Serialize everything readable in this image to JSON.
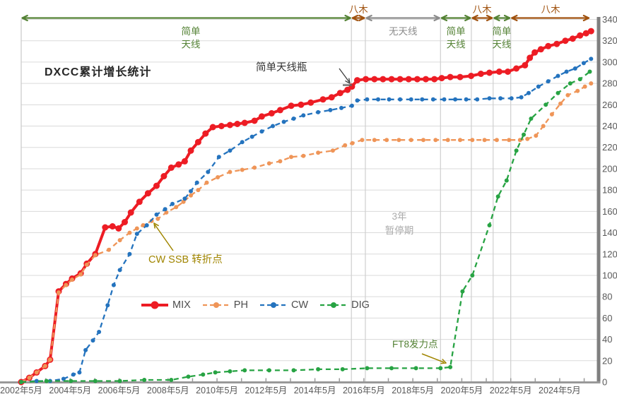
{
  "title": "DXCC累计增长统计",
  "colors": {
    "mix": "#ED1C24",
    "ph": "#EF9558",
    "cw": "#2473BE",
    "dig": "#27A343",
    "green_note": "#548235",
    "brown_note": "#A0520F",
    "gray_note": "#8C8C8C",
    "olive_note": "#A08500",
    "grid": "#DADADA",
    "boundary": "#CFCFCF",
    "axis": "#999999",
    "axis_right": "#7F7F7F",
    "tick_text": "#595959"
  },
  "legend": [
    {
      "label": "MIX",
      "color": "#ED1C24",
      "dash": "solid"
    },
    {
      "label": "PH",
      "color": "#EF9558",
      "dash": "dashed"
    },
    {
      "label": "CW",
      "color": "#2473BE",
      "dash": "dashed"
    },
    {
      "label": "DIG",
      "color": "#27A343",
      "dash": "dashed"
    }
  ],
  "annotations": {
    "bottleneck": {
      "text": "简单天线瓶",
      "color": "#333333"
    },
    "cwssb": {
      "text": "CW SSB 转折点",
      "color": "#A08500"
    },
    "pause": {
      "line1": "3年",
      "line2": "暂停期",
      "color": "#ABABAB"
    },
    "ft8": {
      "text": "FT8发力点",
      "color": "#548235"
    }
  },
  "periods": [
    {
      "label_lines": [
        "简单",
        "天线"
      ],
      "from": 2002.37,
      "to": 2015.86,
      "color_key": "green_note",
      "label_side": "below",
      "label_at": 2009.3
    },
    {
      "label_lines": [
        "八木"
      ],
      "from": 2015.86,
      "to": 2016.43,
      "color_key": "brown_note",
      "label_side": "above",
      "label_at": 2016.15
    },
    {
      "label_lines": [
        "无天线"
      ],
      "from": 2016.43,
      "to": 2019.5,
      "color_key": "gray_note",
      "label_side": "below",
      "label_at": 2017.97
    },
    {
      "label_lines": [
        "简单",
        "天线"
      ],
      "from": 2019.5,
      "to": 2020.76,
      "color_key": "green_note",
      "label_side": "below",
      "label_at": 2020.13
    },
    {
      "label_lines": [
        "八木"
      ],
      "from": 2020.76,
      "to": 2021.65,
      "color_key": "brown_note",
      "label_side": "above",
      "label_at": 2021.2
    },
    {
      "label_lines": [
        "简单",
        "天线"
      ],
      "from": 2021.65,
      "to": 2022.37,
      "color_key": "green_note",
      "label_side": "below",
      "label_at": 2022.0
    },
    {
      "label_lines": [
        "八木"
      ],
      "from": 2022.37,
      "to": 2025.6,
      "color_key": "brown_note",
      "label_side": "above",
      "label_at": 2024.0
    }
  ],
  "chart_data": {
    "type": "line",
    "title": "DXCC累计增长统计",
    "xlabel": "",
    "ylabel": "",
    "grid": true,
    "legend_position": "inside-left-bottom",
    "x_axis": {
      "range": [
        2002.37,
        2025.7
      ],
      "ticks": [
        {
          "year": 2002.37,
          "label": "2002年5月"
        },
        {
          "year": 2004.37,
          "label": "2004年5月"
        },
        {
          "year": 2006.37,
          "label": "2006年5月"
        },
        {
          "year": 2008.37,
          "label": "2008年5月"
        },
        {
          "year": 2010.37,
          "label": "2010年5月"
        },
        {
          "year": 2012.37,
          "label": "2012年5月"
        },
        {
          "year": 2014.37,
          "label": "2014年5月"
        },
        {
          "year": 2016.37,
          "label": "2016年5月"
        },
        {
          "year": 2018.37,
          "label": "2018年5月"
        },
        {
          "year": 2020.37,
          "label": "2020年5月"
        },
        {
          "year": 2022.37,
          "label": "2022年5月"
        },
        {
          "year": 2024.37,
          "label": "2024年5月"
        }
      ]
    },
    "y_axis": {
      "min": 0,
      "max": 340,
      "step": 20,
      "side": "right"
    },
    "period_boundaries": [
      2015.86,
      2016.43,
      2019.5,
      2020.76,
      2021.65,
      2022.37
    ],
    "series": [
      {
        "name": "MIX",
        "color": "#ED1C24",
        "dash": "solid",
        "points": [
          [
            2002.37,
            0
          ],
          [
            2002.7,
            4
          ],
          [
            2003.0,
            9
          ],
          [
            2003.35,
            15
          ],
          [
            2003.55,
            21
          ],
          [
            2003.9,
            85
          ],
          [
            2004.2,
            92
          ],
          [
            2004.45,
            97
          ],
          [
            2004.8,
            102
          ],
          [
            2005.05,
            111
          ],
          [
            2005.4,
            120
          ],
          [
            2005.8,
            145
          ],
          [
            2006.1,
            146
          ],
          [
            2006.35,
            144
          ],
          [
            2006.6,
            150
          ],
          [
            2006.85,
            159
          ],
          [
            2007.2,
            169
          ],
          [
            2007.55,
            177
          ],
          [
            2007.9,
            184
          ],
          [
            2008.2,
            193
          ],
          [
            2008.5,
            201
          ],
          [
            2008.8,
            204
          ],
          [
            2009.05,
            207
          ],
          [
            2009.3,
            217
          ],
          [
            2009.6,
            225
          ],
          [
            2009.9,
            233
          ],
          [
            2010.2,
            239
          ],
          [
            2010.55,
            240
          ],
          [
            2010.9,
            241
          ],
          [
            2011.2,
            242
          ],
          [
            2011.5,
            243
          ],
          [
            2011.9,
            245
          ],
          [
            2012.2,
            249
          ],
          [
            2012.6,
            252
          ],
          [
            2012.95,
            255
          ],
          [
            2013.4,
            259
          ],
          [
            2013.8,
            260
          ],
          [
            2014.2,
            262
          ],
          [
            2014.7,
            265
          ],
          [
            2015.05,
            267
          ],
          [
            2015.4,
            271
          ],
          [
            2015.7,
            274
          ],
          [
            2015.88,
            277
          ],
          [
            2016.1,
            283
          ],
          [
            2016.45,
            284
          ],
          [
            2016.8,
            284
          ],
          [
            2017.15,
            284
          ],
          [
            2017.5,
            284
          ],
          [
            2017.85,
            284
          ],
          [
            2018.2,
            284
          ],
          [
            2018.55,
            284
          ],
          [
            2018.9,
            284
          ],
          [
            2019.25,
            284
          ],
          [
            2019.55,
            285
          ],
          [
            2019.9,
            286
          ],
          [
            2020.3,
            286
          ],
          [
            2020.75,
            287
          ],
          [
            2021.15,
            289
          ],
          [
            2021.5,
            290
          ],
          [
            2021.9,
            291
          ],
          [
            2022.25,
            291
          ],
          [
            2022.6,
            294
          ],
          [
            2022.95,
            297
          ],
          [
            2023.15,
            304
          ],
          [
            2023.35,
            309
          ],
          [
            2023.6,
            312
          ],
          [
            2023.9,
            315
          ],
          [
            2024.25,
            317
          ],
          [
            2024.6,
            320
          ],
          [
            2024.9,
            322
          ],
          [
            2025.2,
            325
          ],
          [
            2025.45,
            327
          ],
          [
            2025.65,
            329
          ]
        ]
      },
      {
        "name": "PH",
        "color": "#EF9558",
        "dash": "dashed",
        "points": [
          [
            2002.37,
            0
          ],
          [
            2002.7,
            4
          ],
          [
            2003.0,
            9
          ],
          [
            2003.35,
            15
          ],
          [
            2003.55,
            21
          ],
          [
            2003.9,
            84
          ],
          [
            2004.2,
            91
          ],
          [
            2004.45,
            96
          ],
          [
            2004.8,
            101
          ],
          [
            2005.05,
            110
          ],
          [
            2005.4,
            119
          ],
          [
            2005.95,
            124
          ],
          [
            2006.4,
            133
          ],
          [
            2006.8,
            140
          ],
          [
            2007.1,
            144
          ],
          [
            2007.35,
            147
          ],
          [
            2007.7,
            151
          ],
          [
            2007.95,
            153
          ],
          [
            2008.3,
            159
          ],
          [
            2008.7,
            164
          ],
          [
            2009.0,
            169
          ],
          [
            2009.3,
            175
          ],
          [
            2009.6,
            180
          ],
          [
            2009.95,
            187
          ],
          [
            2010.4,
            192
          ],
          [
            2010.9,
            197
          ],
          [
            2011.4,
            199
          ],
          [
            2011.9,
            201
          ],
          [
            2012.5,
            205
          ],
          [
            2012.95,
            207
          ],
          [
            2013.4,
            211
          ],
          [
            2013.9,
            212
          ],
          [
            2014.5,
            215
          ],
          [
            2015.1,
            217
          ],
          [
            2015.6,
            222
          ],
          [
            2015.9,
            224
          ],
          [
            2016.3,
            227
          ],
          [
            2016.8,
            227
          ],
          [
            2017.3,
            227
          ],
          [
            2017.8,
            227
          ],
          [
            2018.3,
            227
          ],
          [
            2018.8,
            227
          ],
          [
            2019.3,
            227
          ],
          [
            2019.8,
            227
          ],
          [
            2020.3,
            227
          ],
          [
            2020.8,
            227
          ],
          [
            2021.3,
            227
          ],
          [
            2021.8,
            227
          ],
          [
            2022.3,
            227
          ],
          [
            2022.75,
            227
          ],
          [
            2023.05,
            228
          ],
          [
            2023.4,
            231
          ],
          [
            2023.7,
            240
          ],
          [
            2024.05,
            251
          ],
          [
            2024.4,
            261
          ],
          [
            2024.7,
            269
          ],
          [
            2025.1,
            273
          ],
          [
            2025.4,
            277
          ],
          [
            2025.65,
            280
          ]
        ]
      },
      {
        "name": "CW",
        "color": "#2473BE",
        "dash": "dashed",
        "points": [
          [
            2002.37,
            0
          ],
          [
            2003.0,
            1
          ],
          [
            2003.55,
            1
          ],
          [
            2004.1,
            3
          ],
          [
            2004.5,
            7
          ],
          [
            2004.75,
            9
          ],
          [
            2005.0,
            30
          ],
          [
            2005.3,
            39
          ],
          [
            2005.55,
            47
          ],
          [
            2005.9,
            72
          ],
          [
            2006.15,
            91
          ],
          [
            2006.4,
            105
          ],
          [
            2006.8,
            120
          ],
          [
            2007.1,
            139
          ],
          [
            2007.5,
            147
          ],
          [
            2007.9,
            157
          ],
          [
            2008.25,
            162
          ],
          [
            2008.55,
            167
          ],
          [
            2009.05,
            172
          ],
          [
            2009.3,
            179
          ],
          [
            2009.55,
            187
          ],
          [
            2010.0,
            197
          ],
          [
            2010.45,
            211
          ],
          [
            2010.9,
            217
          ],
          [
            2011.4,
            225
          ],
          [
            2011.8,
            230
          ],
          [
            2012.2,
            235
          ],
          [
            2012.65,
            240
          ],
          [
            2013.1,
            244
          ],
          [
            2013.5,
            247
          ],
          [
            2013.9,
            250
          ],
          [
            2014.5,
            253
          ],
          [
            2015.0,
            255
          ],
          [
            2015.45,
            257
          ],
          [
            2015.88,
            259
          ],
          [
            2016.1,
            264
          ],
          [
            2016.5,
            265
          ],
          [
            2016.95,
            265
          ],
          [
            2017.4,
            265
          ],
          [
            2017.85,
            265
          ],
          [
            2018.3,
            265
          ],
          [
            2018.75,
            265
          ],
          [
            2019.2,
            265
          ],
          [
            2019.65,
            265
          ],
          [
            2020.1,
            265
          ],
          [
            2020.55,
            265
          ],
          [
            2021.0,
            265
          ],
          [
            2021.5,
            266
          ],
          [
            2021.95,
            266
          ],
          [
            2022.4,
            266
          ],
          [
            2022.8,
            267
          ],
          [
            2023.1,
            271
          ],
          [
            2023.5,
            277
          ],
          [
            2023.9,
            282
          ],
          [
            2024.3,
            287
          ],
          [
            2024.65,
            291
          ],
          [
            2025.0,
            294
          ],
          [
            2025.35,
            299
          ],
          [
            2025.65,
            303
          ]
        ]
      },
      {
        "name": "DIG",
        "color": "#27A343",
        "dash": "dashed",
        "points": [
          [
            2002.37,
            0
          ],
          [
            2003.4,
            1
          ],
          [
            2004.4,
            1
          ],
          [
            2005.4,
            1
          ],
          [
            2006.4,
            1
          ],
          [
            2007.4,
            2
          ],
          [
            2008.5,
            2
          ],
          [
            2009.2,
            5
          ],
          [
            2009.8,
            7
          ],
          [
            2010.3,
            9
          ],
          [
            2010.9,
            10
          ],
          [
            2011.5,
            11
          ],
          [
            2012.5,
            11
          ],
          [
            2013.5,
            11
          ],
          [
            2014.5,
            12
          ],
          [
            2015.5,
            12
          ],
          [
            2016.5,
            13
          ],
          [
            2017.5,
            13
          ],
          [
            2018.5,
            13
          ],
          [
            2019.5,
            13
          ],
          [
            2019.9,
            14
          ],
          [
            2020.4,
            85
          ],
          [
            2020.8,
            100
          ],
          [
            2021.5,
            147
          ],
          [
            2021.85,
            174
          ],
          [
            2022.2,
            189
          ],
          [
            2022.6,
            217
          ],
          [
            2022.9,
            232
          ],
          [
            2023.2,
            247
          ],
          [
            2023.8,
            260
          ],
          [
            2024.3,
            271
          ],
          [
            2024.8,
            280
          ],
          [
            2025.2,
            284
          ],
          [
            2025.6,
            291
          ]
        ]
      }
    ]
  }
}
